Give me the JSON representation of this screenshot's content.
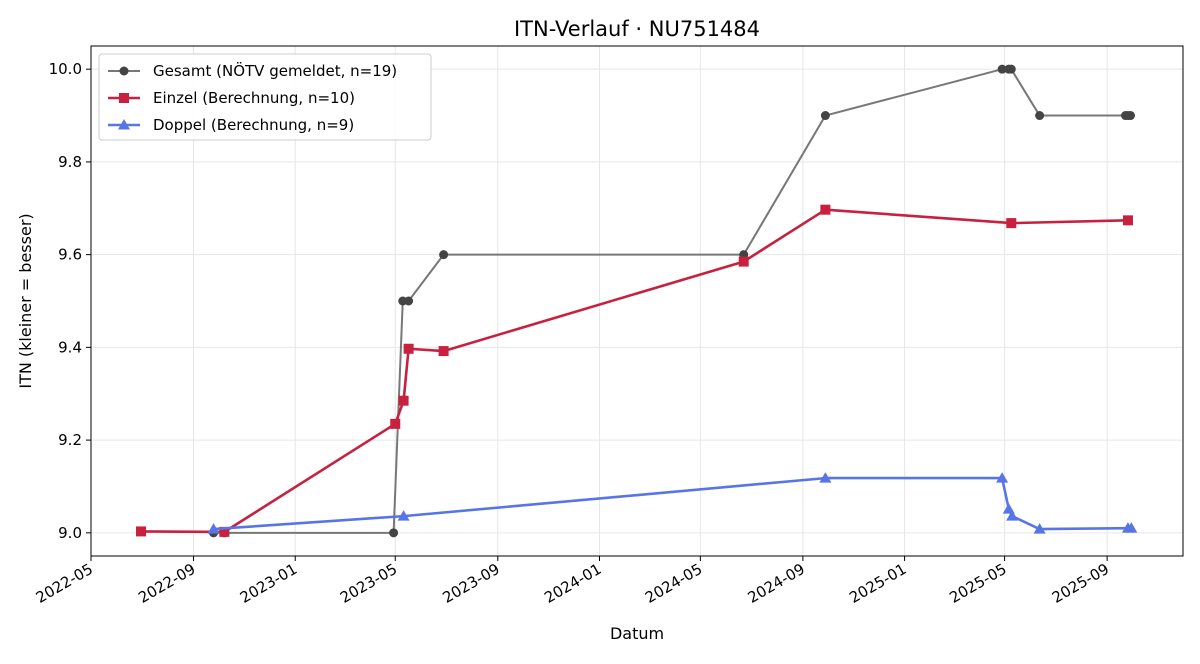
{
  "chart_data": {
    "type": "line",
    "title": "ITN-Verlauf · NU751484",
    "xlabel": "Datum",
    "ylabel": "ITN  (kleiner = besser)",
    "xlim": [
      "2022-05-01",
      "2025-12-01"
    ],
    "ylim": [
      8.95,
      10.05
    ],
    "x_ticks": [
      "2022-05",
      "2022-09",
      "2023-01",
      "2023-05",
      "2023-09",
      "2024-01",
      "2024-05",
      "2024-09",
      "2025-01",
      "2025-05",
      "2025-09"
    ],
    "y_ticks": [
      "9.0",
      "9.2",
      "9.4",
      "9.6",
      "9.8",
      "10.0"
    ],
    "grid": true,
    "legend_position": "top-left",
    "series": [
      {
        "name": "Gesamt (NÖTV gemeldet, n=19)",
        "color": "#777777",
        "marker_color": "#444444",
        "marker": "circle",
        "points": [
          {
            "x": "2022-09-25",
            "y": 9.0
          },
          {
            "x": "2022-10-08",
            "y": 9.0
          },
          {
            "x": "2023-04-29",
            "y": 9.0
          },
          {
            "x": "2023-05-10",
            "y": 9.5
          },
          {
            "x": "2023-05-17",
            "y": 9.5
          },
          {
            "x": "2023-06-28",
            "y": 9.6
          },
          {
            "x": "2024-06-22",
            "y": 9.6
          },
          {
            "x": "2024-09-28",
            "y": 9.9
          },
          {
            "x": "2025-04-28",
            "y": 10.0
          },
          {
            "x": "2025-05-06",
            "y": 10.0
          },
          {
            "x": "2025-05-09",
            "y": 10.0
          },
          {
            "x": "2025-06-12",
            "y": 9.9
          },
          {
            "x": "2025-09-23",
            "y": 9.9
          },
          {
            "x": "2025-09-26",
            "y": 9.9
          },
          {
            "x": "2025-09-29",
            "y": 9.9
          }
        ]
      },
      {
        "name": "Einzel (Berechnung, n=10)",
        "color": "#c8213f",
        "marker": "square",
        "points": [
          {
            "x": "2022-06-30",
            "y": 9.003
          },
          {
            "x": "2022-10-08",
            "y": 9.002
          },
          {
            "x": "2023-05-01",
            "y": 9.235
          },
          {
            "x": "2023-05-11",
            "y": 9.285
          },
          {
            "x": "2023-05-17",
            "y": 9.397
          },
          {
            "x": "2023-06-28",
            "y": 9.392
          },
          {
            "x": "2024-06-22",
            "y": 9.585
          },
          {
            "x": "2024-09-28",
            "y": 9.697
          },
          {
            "x": "2025-05-09",
            "y": 9.668
          },
          {
            "x": "2025-09-26",
            "y": 9.674
          }
        ]
      },
      {
        "name": "Doppel (Berechnung, n=9)",
        "color": "#5875e8",
        "marker": "triangle",
        "points": [
          {
            "x": "2022-09-25",
            "y": 9.008
          },
          {
            "x": "2023-05-11",
            "y": 9.036
          },
          {
            "x": "2024-09-28",
            "y": 9.118
          },
          {
            "x": "2025-04-28",
            "y": 9.118
          },
          {
            "x": "2025-05-06",
            "y": 9.051
          },
          {
            "x": "2025-05-10",
            "y": 9.036
          },
          {
            "x": "2025-06-12",
            "y": 9.008
          },
          {
            "x": "2025-09-26",
            "y": 9.01
          },
          {
            "x": "2025-09-30",
            "y": 9.01
          }
        ]
      }
    ]
  }
}
